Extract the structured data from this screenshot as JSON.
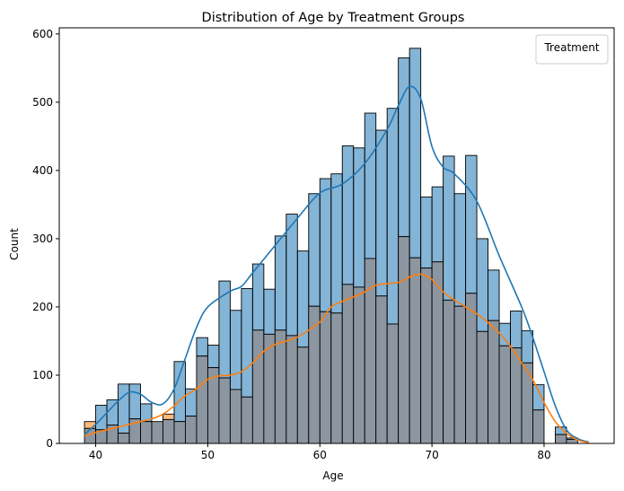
{
  "chart_data": {
    "type": "histogram",
    "title": "Distribution of Age by Treatment Groups",
    "xlabel": "Age",
    "ylabel": "Count",
    "xlim": [
      36.75,
      86.25
    ],
    "ylim": [
      0,
      609
    ],
    "x_ticks": [
      40,
      50,
      60,
      70,
      80
    ],
    "y_ticks": [
      0,
      100,
      200,
      300,
      400,
      500,
      600
    ],
    "legend": {
      "title": "Treatment",
      "placement": "top-right",
      "entries": []
    },
    "bins": {
      "start": 39,
      "width": 1.0,
      "count": 45
    },
    "series": [
      {
        "color": "#1f77b4",
        "counts": [
          22,
          56,
          64,
          87,
          87,
          58,
          32,
          35,
          120,
          80,
          155,
          144,
          238,
          195,
          227,
          263,
          226,
          304,
          336,
          282,
          366,
          388,
          395,
          436,
          433,
          484,
          459,
          491,
          565,
          579,
          361,
          376,
          421,
          366,
          422,
          300,
          254,
          176,
          194,
          165,
          86,
          0,
          24,
          8,
          0
        ],
        "kde": [
          [
            39,
            13
          ],
          [
            40,
            28
          ],
          [
            41,
            45
          ],
          [
            42,
            62
          ],
          [
            43,
            75
          ],
          [
            44,
            72
          ],
          [
            45,
            60
          ],
          [
            46,
            58
          ],
          [
            47,
            80
          ],
          [
            48,
            125
          ],
          [
            49,
            170
          ],
          [
            50,
            200
          ],
          [
            52,
            223
          ],
          [
            53,
            230
          ],
          [
            54,
            250
          ],
          [
            56,
            290
          ],
          [
            58,
            330
          ],
          [
            60,
            367
          ],
          [
            62,
            380
          ],
          [
            64,
            410
          ],
          [
            66,
            460
          ],
          [
            67,
            495
          ],
          [
            68,
            523
          ],
          [
            69,
            505
          ],
          [
            70,
            435
          ],
          [
            71,
            405
          ],
          [
            72,
            395
          ],
          [
            74,
            355
          ],
          [
            76,
            275
          ],
          [
            78,
            200
          ],
          [
            79,
            155
          ],
          [
            80,
            105
          ],
          [
            81,
            55
          ],
          [
            82,
            20
          ],
          [
            83,
            7
          ],
          [
            84,
            2
          ]
        ]
      },
      {
        "color": "#ff7f0e",
        "counts": [
          32,
          20,
          27,
          15,
          36,
          32,
          32,
          43,
          32,
          40,
          128,
          111,
          96,
          79,
          68,
          166,
          160,
          166,
          158,
          141,
          201,
          193,
          191,
          233,
          229,
          271,
          216,
          175,
          303,
          272,
          257,
          266,
          210,
          201,
          220,
          164,
          180,
          143,
          140,
          118,
          49,
          0,
          13,
          6,
          0
        ],
        "kde": [
          [
            39,
            11
          ],
          [
            40,
            16
          ],
          [
            41,
            20
          ],
          [
            42,
            24
          ],
          [
            43,
            28
          ],
          [
            44,
            32
          ],
          [
            45,
            36
          ],
          [
            46,
            43
          ],
          [
            47,
            55
          ],
          [
            48,
            70
          ],
          [
            49,
            80
          ],
          [
            50,
            94
          ],
          [
            51,
            99
          ],
          [
            52,
            100
          ],
          [
            53,
            105
          ],
          [
            54,
            118
          ],
          [
            55,
            135
          ],
          [
            56,
            145
          ],
          [
            57,
            150
          ],
          [
            58,
            156
          ],
          [
            60,
            178
          ],
          [
            61,
            200
          ],
          [
            62,
            208
          ],
          [
            64,
            222
          ],
          [
            65,
            232
          ],
          [
            67,
            236
          ],
          [
            68,
            244
          ],
          [
            69,
            248
          ],
          [
            70,
            240
          ],
          [
            71,
            222
          ],
          [
            72,
            210
          ],
          [
            73,
            200
          ],
          [
            74,
            190
          ],
          [
            75,
            177
          ],
          [
            76,
            162
          ],
          [
            77,
            142
          ],
          [
            78,
            118
          ],
          [
            79,
            93
          ],
          [
            80,
            60
          ],
          [
            81,
            32
          ],
          [
            82,
            15
          ],
          [
            83,
            5
          ],
          [
            84,
            1
          ]
        ]
      }
    ],
    "overlap_color": "#8c96a0"
  }
}
